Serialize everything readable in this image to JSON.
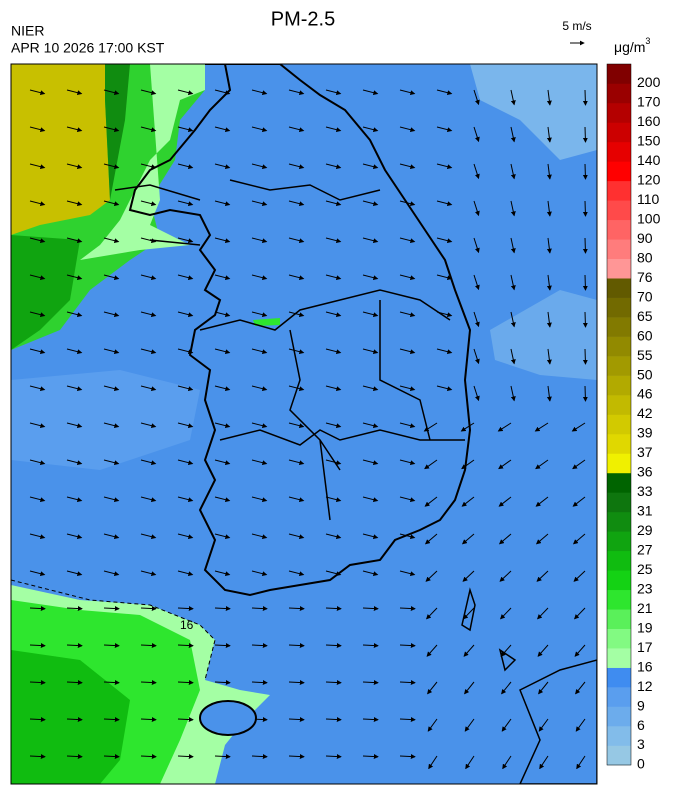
{
  "header": {
    "title": "PM-2.5",
    "agency": "NIER",
    "timestamp": "APR 10 2026 17:00 KST",
    "wind_scale": "5 m/s",
    "unit": {
      "base": "μg/m",
      "exponent": "3"
    }
  },
  "map": {
    "contour_label": "16"
  },
  "colorbar": {
    "labels": [
      0,
      3,
      6,
      9,
      12,
      16,
      17,
      19,
      21,
      23,
      25,
      27,
      29,
      31,
      33,
      36,
      37,
      39,
      42,
      46,
      50,
      55,
      60,
      65,
      70,
      76,
      80,
      90,
      100,
      110,
      120,
      140,
      150,
      160,
      170,
      200
    ],
    "colors": [
      "#96c8e4",
      "#82bcea",
      "#6cacec",
      "#5a9eee",
      "#3f8cf0",
      "#a4ffa4",
      "#82fa82",
      "#5af05a",
      "#2ee62e",
      "#14d214",
      "#10bc10",
      "#10a410",
      "#108c10",
      "#0e760e",
      "#006400",
      "#f0f000",
      "#e0d800",
      "#d2ca00",
      "#c2ba00",
      "#b2aa00",
      "#a29a00",
      "#928a00",
      "#827a00",
      "#726a00",
      "#625a00",
      "#ff9696",
      "#ff7c7c",
      "#ff6464",
      "#ff4a4a",
      "#ff3030",
      "#ff0000",
      "#e60000",
      "#cc0000",
      "#b40000",
      "#9a0000",
      "#800000"
    ]
  }
}
